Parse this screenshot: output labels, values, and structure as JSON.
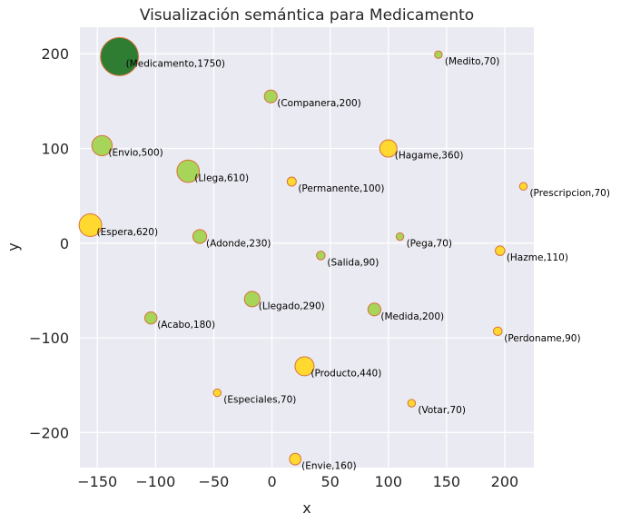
{
  "chart_data": {
    "type": "scatter",
    "title": "Visualización semántica para Medicamento",
    "xlabel": "x",
    "ylabel": "y",
    "xlim": [
      -165,
      225
    ],
    "ylim": [
      -237,
      228
    ],
    "xticks": [
      -150,
      -100,
      -50,
      0,
      50,
      100,
      150,
      200
    ],
    "yticks": [
      -200,
      -100,
      0,
      100,
      200
    ],
    "xtick_labels": [
      "−150",
      "−100",
      "−50",
      "0",
      "50",
      "100",
      "150",
      "200"
    ],
    "ytick_labels": [
      "−200",
      "−100",
      "0",
      "100",
      "200"
    ],
    "grid": true,
    "colors": {
      "background": "#eaeaf2",
      "grid": "#ffffff",
      "edge": "#d9703a",
      "main": "#2e7d32",
      "green": "#a6d55a",
      "yellow": "#ffd92f"
    },
    "points": [
      {
        "label": "(Medicamento,1750)",
        "x": -131,
        "y": 197,
        "size": 1750,
        "color": "main"
      },
      {
        "label": "(Medito,70)",
        "x": 143,
        "y": 199,
        "size": 70,
        "color": "green"
      },
      {
        "label": "(Companera,200)",
        "x": -1,
        "y": 155,
        "size": 200,
        "color": "green"
      },
      {
        "label": "(Envio,500)",
        "x": -146,
        "y": 103,
        "size": 500,
        "color": "green"
      },
      {
        "label": "(Hagame,360)",
        "x": 100,
        "y": 100,
        "size": 360,
        "color": "yellow"
      },
      {
        "label": "(Llega,610)",
        "x": -72,
        "y": 76,
        "size": 610,
        "color": "green"
      },
      {
        "label": "(Permanente,100)",
        "x": 17,
        "y": 65,
        "size": 100,
        "color": "yellow"
      },
      {
        "label": "(Prescripcion,70)",
        "x": 216,
        "y": 60,
        "size": 70,
        "color": "yellow"
      },
      {
        "label": "(Espera,620)",
        "x": -156,
        "y": 19,
        "size": 620,
        "color": "yellow"
      },
      {
        "label": "(Adonde,230)",
        "x": -62,
        "y": 7,
        "size": 230,
        "color": "green"
      },
      {
        "label": "(Pega,70)",
        "x": 110,
        "y": 7,
        "size": 70,
        "color": "green"
      },
      {
        "label": "(Hazme,110)",
        "x": 196,
        "y": -8,
        "size": 110,
        "color": "yellow"
      },
      {
        "label": "(Salida,90)",
        "x": 42,
        "y": -13,
        "size": 90,
        "color": "green"
      },
      {
        "label": "(Llegado,290)",
        "x": -17,
        "y": -59,
        "size": 290,
        "color": "green"
      },
      {
        "label": "(Medida,200)",
        "x": 88,
        "y": -70,
        "size": 200,
        "color": "green"
      },
      {
        "label": "(Acabo,180)",
        "x": -104,
        "y": -79,
        "size": 180,
        "color": "green"
      },
      {
        "label": "(Perdoname,90)",
        "x": 194,
        "y": -93,
        "size": 90,
        "color": "yellow"
      },
      {
        "label": "(Producto,440)",
        "x": 28,
        "y": -130,
        "size": 440,
        "color": "yellow"
      },
      {
        "label": "(Especiales,70)",
        "x": -47,
        "y": -158,
        "size": 70,
        "color": "yellow"
      },
      {
        "label": "(Votar,70)",
        "x": 120,
        "y": -169,
        "size": 70,
        "color": "yellow"
      },
      {
        "label": "(Envie,160)",
        "x": 20,
        "y": -228,
        "size": 160,
        "color": "yellow"
      }
    ]
  }
}
